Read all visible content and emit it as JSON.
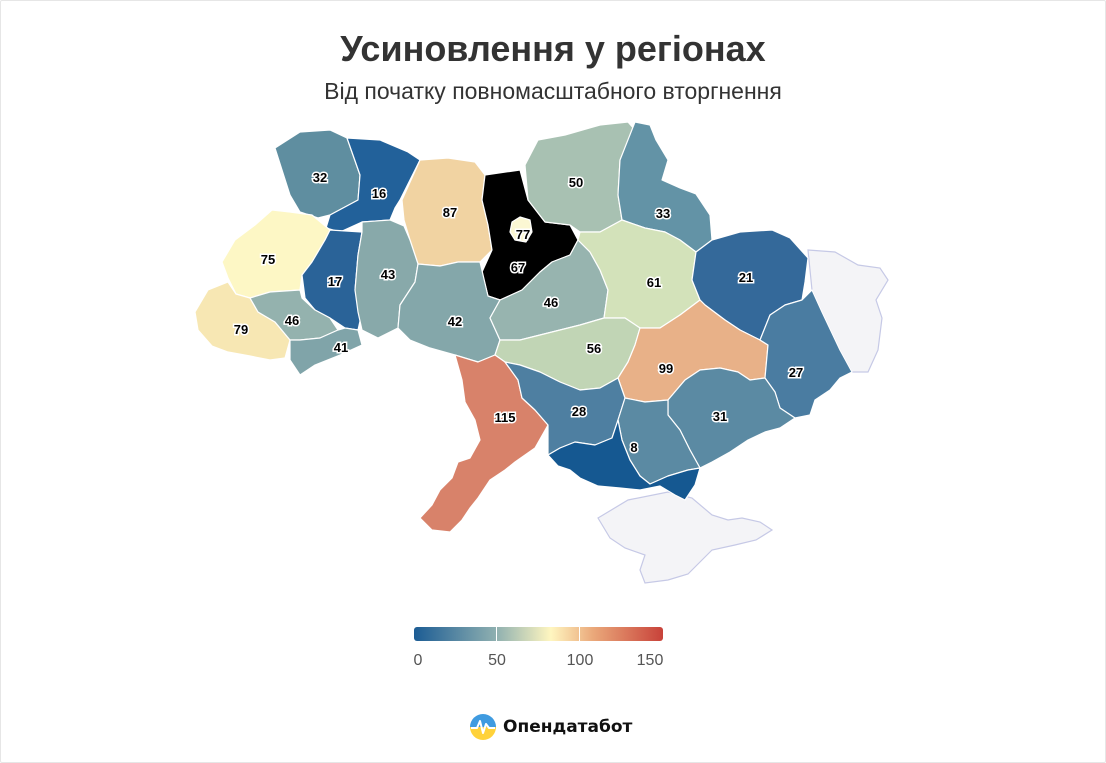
{
  "title": "Усиновлення у регіонах",
  "subtitle": "Від початку повномасштабного вторгнення",
  "map": {
    "regions": [
      {
        "id": "volyn",
        "value": "32",
        "color": "#5f8ea0"
      },
      {
        "id": "rivne",
        "value": "16",
        "color": "#22619a"
      },
      {
        "id": "zhytomyr",
        "value": "87",
        "color": "#f1d3a2"
      },
      {
        "id": "kyiv-oblast",
        "value": "67",
        "color": "#eef0c6"
      },
      {
        "id": "kyiv-city",
        "value": "77",
        "color": "#fbf7d3"
      },
      {
        "id": "chernihiv",
        "value": "50",
        "color": "#a8c1b2"
      },
      {
        "id": "sumy",
        "value": "33",
        "color": "#6393a6"
      },
      {
        "id": "lviv",
        "value": "75",
        "color": "#fdf7c5"
      },
      {
        "id": "ternopil",
        "value": "17",
        "color": "#2a6398"
      },
      {
        "id": "khmelnytskyi",
        "value": "43",
        "color": "#88a9aa"
      },
      {
        "id": "vinnytsia",
        "value": "42",
        "color": "#84a7aa"
      },
      {
        "id": "cherkasy",
        "value": "46",
        "color": "#97b4af"
      },
      {
        "id": "poltava",
        "value": "61",
        "color": "#d3e2ba"
      },
      {
        "id": "kharkiv",
        "value": "21",
        "color": "#34699a"
      },
      {
        "id": "zakarpattia",
        "value": "79",
        "color": "#f7e7b3"
      },
      {
        "id": "ivano-frankivsk",
        "value": "46",
        "color": "#94b2ae"
      },
      {
        "id": "chernivtsi",
        "value": "41",
        "color": "#80a4a9"
      },
      {
        "id": "kirovohrad",
        "value": "56",
        "color": "#c1d5b5"
      },
      {
        "id": "dnipropetrovsk",
        "value": "99",
        "color": "#e8b188"
      },
      {
        "id": "luhansk",
        "value": "27",
        "color": "#4a7ca1"
      },
      {
        "id": "donetsk",
        "value": "31",
        "color": "#5b8aa3"
      },
      {
        "id": "odesa",
        "value": "115",
        "color": "#d8826a"
      },
      {
        "id": "mykolaiv",
        "value": "28",
        "color": "#4e7fa1"
      },
      {
        "id": "zaporizhzhia",
        "value": "31",
        "color": "#5b8aa3"
      },
      {
        "id": "kherson",
        "value": "8",
        "color": "#155891"
      }
    ],
    "occupied_color": "#f4f4f7"
  },
  "legend": {
    "labels": [
      "0",
      "50",
      "100",
      "150"
    ],
    "colors": [
      "#1c5c94",
      "#8fb0b0",
      "#fff6c0",
      "#eaa87a",
      "#c8423a"
    ]
  },
  "brand": {
    "name": "Опендатабот",
    "icon": "opendatabot-logo-icon"
  }
}
